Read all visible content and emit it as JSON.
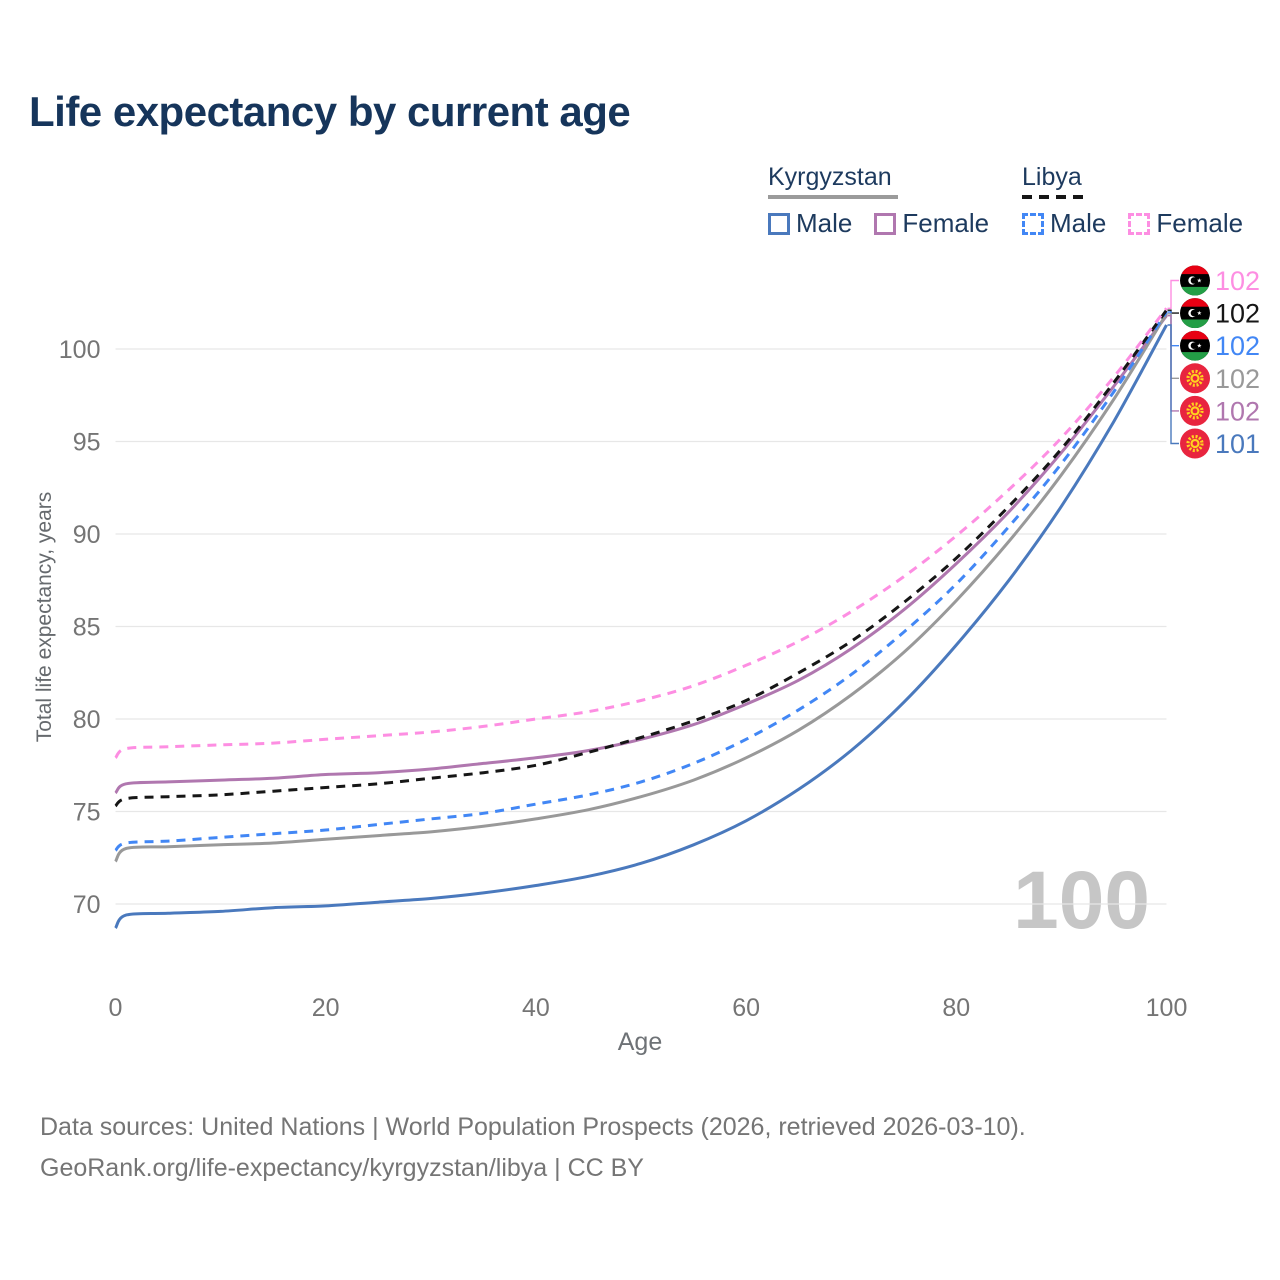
{
  "page": {
    "title": "Life expectancy by current age",
    "watermark_age": "100",
    "footer_line1": "Data sources: United Nations | World Population Prospects (2026, retrieved 2026-03-10).",
    "footer_line2": "GeoRank.org/life-expectancy/kyrgyzstan/libya | CC BY"
  },
  "legend": {
    "groups": [
      {
        "country": "Kyrgyzstan",
        "line_style": "solid",
        "underline_color": "#9b9b9b",
        "items": [
          {
            "label": "Male",
            "color": "#4a79bd",
            "dashed": false
          },
          {
            "label": "Female",
            "color": "#b077af",
            "dashed": false
          }
        ]
      },
      {
        "country": "Libya",
        "line_style": "dashed",
        "underline_color": "#161616",
        "items": [
          {
            "label": "Male",
            "color": "#4287f5",
            "dashed": true
          },
          {
            "label": "Female",
            "color": "#fd8ee2",
            "dashed": true
          }
        ]
      }
    ]
  },
  "colors": {
    "title": "#16355b",
    "axis_text": "#757575",
    "grid": "#e7e7e7",
    "watermark": "#c6c6c6",
    "footer_text": "#757575"
  },
  "chart_data": {
    "type": "line",
    "title": "Life expectancy by current age",
    "xlabel": "Age",
    "ylabel": "Total life expectancy, years",
    "xlim": [
      0,
      100
    ],
    "ylim": [
      67,
      103.5
    ],
    "xticks": [
      0,
      20,
      40,
      60,
      80,
      100
    ],
    "yticks": [
      70,
      75,
      80,
      85,
      90,
      95,
      100
    ],
    "grid": "horizontal-only",
    "legend_position": "top-right",
    "x": [
      0,
      1,
      5,
      10,
      15,
      20,
      25,
      30,
      35,
      40,
      45,
      50,
      55,
      60,
      65,
      70,
      75,
      80,
      85,
      90,
      95,
      100
    ],
    "series": [
      {
        "name": "Libya Female",
        "country": "Libya",
        "sex": "Female",
        "color": "#fd8ee2",
        "dashed": true,
        "flag": "libya",
        "end_label": "102",
        "values": [
          77.9,
          78.4,
          78.5,
          78.6,
          78.7,
          78.9,
          79.1,
          79.3,
          79.6,
          80.0,
          80.4,
          81.0,
          81.8,
          82.9,
          84.2,
          85.8,
          87.7,
          89.9,
          92.4,
          95.2,
          98.5,
          102.2
        ]
      },
      {
        "name": "Libya All",
        "country": "Libya",
        "sex": "All",
        "color": "#161616",
        "dashed": true,
        "flag": "libya",
        "end_label": "102",
        "values": [
          75.3,
          75.7,
          75.8,
          75.9,
          76.1,
          76.3,
          76.5,
          76.8,
          77.1,
          77.5,
          78.2,
          79.0,
          79.9,
          81.0,
          82.5,
          84.2,
          86.3,
          88.7,
          91.5,
          94.6,
          98.2,
          102.1
        ]
      },
      {
        "name": "Libya Male",
        "country": "Libya",
        "sex": "Male",
        "color": "#4287f5",
        "dashed": true,
        "flag": "libya",
        "end_label": "102",
        "values": [
          72.9,
          73.3,
          73.4,
          73.6,
          73.8,
          74.0,
          74.3,
          74.6,
          74.9,
          75.4,
          75.9,
          76.6,
          77.6,
          78.9,
          80.5,
          82.4,
          84.7,
          87.3,
          90.4,
          93.8,
          97.7,
          102.0
        ]
      },
      {
        "name": "Kyrgyzstan All",
        "country": "Kyrgyzstan",
        "sex": "All",
        "color": "#999999",
        "dashed": false,
        "flag": "kyrgyzstan",
        "end_label": "102",
        "values": [
          72.3,
          73.0,
          73.1,
          73.2,
          73.3,
          73.5,
          73.7,
          73.9,
          74.2,
          74.6,
          75.1,
          75.8,
          76.7,
          77.9,
          79.4,
          81.3,
          83.6,
          86.4,
          89.6,
          93.2,
          97.3,
          101.9
        ]
      },
      {
        "name": "Kyrgyzstan Female",
        "country": "Kyrgyzstan",
        "sex": "Female",
        "color": "#b077af",
        "dashed": false,
        "flag": "kyrgyzstan",
        "end_label": "102",
        "values": [
          76.0,
          76.5,
          76.6,
          76.7,
          76.8,
          77.0,
          77.1,
          77.3,
          77.6,
          77.9,
          78.3,
          78.9,
          79.7,
          80.8,
          82.1,
          83.8,
          85.9,
          88.4,
          91.2,
          94.4,
          98.0,
          101.8
        ]
      },
      {
        "name": "Kyrgyzstan Male",
        "country": "Kyrgyzstan",
        "sex": "Male",
        "color": "#4a79bd",
        "dashed": false,
        "flag": "kyrgyzstan",
        "end_label": "101",
        "values": [
          68.7,
          69.4,
          69.5,
          69.6,
          69.8,
          69.9,
          70.1,
          70.3,
          70.6,
          71.0,
          71.5,
          72.2,
          73.2,
          74.5,
          76.2,
          78.3,
          80.9,
          84.0,
          87.5,
          91.5,
          96.1,
          101.3
        ]
      }
    ]
  }
}
